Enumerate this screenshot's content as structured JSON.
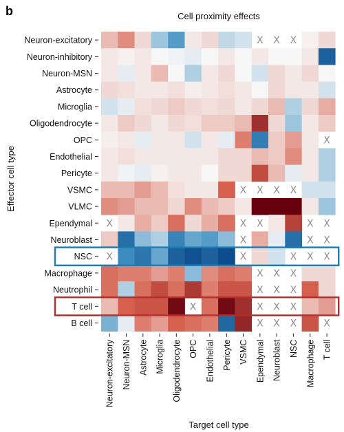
{
  "panel_letter": "b",
  "chart_data": {
    "type": "heatmap",
    "title": "Cell proximity effects",
    "xlabel": "Target cell type",
    "ylabel": "Effector cell type",
    "rows": [
      "Neuron-excitatory",
      "Neuron-inhibitory",
      "Neuron-MSN",
      "Astrocyte",
      "Microglia",
      "Oligodendrocyte",
      "OPC",
      "Endothelial",
      "Pericyte",
      "VSMC",
      "VLMC",
      "Ependymal",
      "Neuroblast",
      "NSC",
      "Macrophage",
      "Neutrophil",
      "T cell",
      "B cell"
    ],
    "columns": [
      "Neuron-excitatory",
      "Neuron-MSN",
      "Astrocyte",
      "Microglia",
      "Oligodendrocyte",
      "OPC",
      "Endothelial",
      "Pericyte",
      "VSMC",
      "Ependymal",
      "Neuroblast",
      "NSC",
      "Macrophage",
      "T cell"
    ],
    "missing_marker": "X",
    "values": [
      [
        0.2,
        0.35,
        0.1,
        -0.25,
        -0.45,
        0.05,
        0.1,
        -0.15,
        -0.1,
        null,
        null,
        null,
        0.02,
        0.1
      ],
      [
        0.05,
        0.02,
        0.05,
        0.0,
        -0.02,
        -0.05,
        0.0,
        0.05,
        0.0,
        0.05,
        0.0,
        0.0,
        0.05,
        -0.85
      ],
      [
        0.05,
        -0.05,
        0.05,
        0.2,
        0.0,
        -0.2,
        0.05,
        0.1,
        0.0,
        -0.1,
        0.1,
        0.05,
        0.1,
        0.0
      ],
      [
        0.1,
        0.08,
        0.05,
        0.05,
        0.08,
        0.03,
        0.05,
        0.08,
        0.05,
        0.0,
        0.1,
        0.05,
        0.05,
        -0.1
      ],
      [
        -0.1,
        -0.05,
        0.08,
        0.1,
        0.15,
        0.1,
        0.08,
        0.1,
        0.05,
        0.1,
        0.2,
        -0.2,
        0.1,
        0.25
      ],
      [
        0.05,
        0.15,
        0.1,
        0.05,
        0.1,
        0.08,
        0.15,
        0.15,
        0.2,
        0.75,
        0.1,
        -0.25,
        0.05,
        0.15
      ],
      [
        0.03,
        0.05,
        -0.05,
        0.05,
        0.05,
        -0.1,
        0.05,
        -0.05,
        0.4,
        -0.65,
        0.15,
        0.3,
        0.05,
        null
      ],
      [
        0.05,
        0.08,
        0.05,
        0.05,
        0.05,
        0.05,
        0.05,
        0.1,
        0.1,
        0.2,
        0.15,
        0.35,
        0.05,
        -0.2
      ],
      [
        0.05,
        -0.02,
        -0.05,
        0.02,
        0.05,
        0.05,
        0.0,
        0.1,
        0.1,
        0.6,
        0.2,
        -0.05,
        0.05,
        -0.2
      ],
      [
        0.2,
        0.2,
        0.3,
        0.2,
        0.08,
        0.05,
        0.05,
        0.5,
        null,
        null,
        null,
        null,
        -0.1,
        -0.1
      ],
      [
        0.35,
        0.3,
        0.2,
        0.2,
        0.1,
        0.35,
        0.2,
        0.15,
        0.05,
        1.0,
        1.0,
        1.0,
        0.05,
        -0.25
      ],
      [
        null,
        0.05,
        0.25,
        0.15,
        0.45,
        0.1,
        0.25,
        0.45,
        null,
        null,
        0.05,
        0.65,
        null,
        null
      ],
      [
        0.15,
        -0.75,
        -0.3,
        -0.2,
        -0.6,
        -0.4,
        -0.45,
        -0.3,
        null,
        0.25,
        -0.05,
        -0.75,
        null,
        null
      ],
      [
        null,
        -0.55,
        -0.7,
        -0.4,
        -0.85,
        -0.95,
        -0.85,
        -0.98,
        null,
        0.1,
        -0.1,
        null,
        null,
        null
      ],
      [
        0.45,
        0.4,
        0.4,
        0.3,
        0.4,
        -0.3,
        0.35,
        0.45,
        0.4,
        null,
        null,
        null,
        0.1,
        0.1
      ],
      [
        0.45,
        -0.2,
        0.45,
        0.6,
        0.45,
        0.7,
        0.4,
        0.55,
        0.55,
        null,
        null,
        null,
        0.5,
        0.1
      ],
      [
        0.2,
        0.5,
        0.55,
        0.55,
        0.95,
        null,
        0.45,
        0.95,
        0.75,
        null,
        null,
        null,
        0.2,
        0.3
      ],
      [
        -0.35,
        -0.05,
        0.4,
        0.3,
        0.5,
        0.45,
        0.4,
        -0.8,
        0.8,
        null,
        null,
        null,
        0.55,
        null
      ]
    ],
    "color_scale": {
      "negative": "#0b4a8c",
      "neutral": "#f7f7f7",
      "positive": "#67000d"
    },
    "highlights": [
      {
        "row": "NSC",
        "color": "#1f7bb0"
      },
      {
        "row": "T cell",
        "color": "#b62b2b"
      }
    ]
  }
}
